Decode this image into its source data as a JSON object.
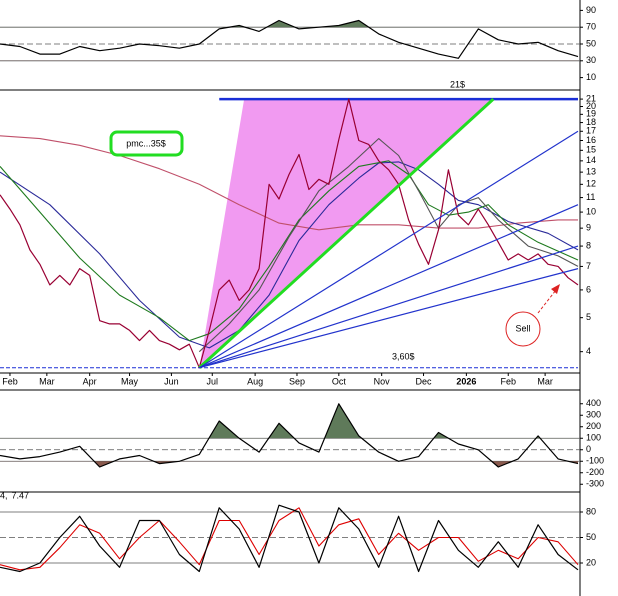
{
  "chart_data": [
    {
      "type": "line",
      "xlim": [
        0,
        58
      ],
      "ylim": [
        0,
        100
      ],
      "yticks": [
        90,
        70,
        50,
        30,
        10
      ],
      "ref_lines": [
        {
          "value": 70,
          "dashed": false
        },
        {
          "value": 50,
          "dashed": true
        },
        {
          "value": 30,
          "dashed": false
        }
      ],
      "fill_above": {
        "value": 70,
        "color": "#5f7a5a"
      },
      "fill_below": {
        "value": 30,
        "color": "#8a5a4e"
      },
      "x": [
        0,
        2,
        4,
        6,
        8,
        10,
        12,
        14,
        16,
        18,
        20,
        22,
        24,
        26,
        28,
        30,
        32,
        34,
        36,
        38,
        40,
        42,
        44,
        46,
        48,
        50,
        52,
        54,
        56,
        58
      ],
      "series": [
        {
          "color": "#000000",
          "values": [
            50,
            47,
            38,
            38,
            47,
            42,
            45,
            50,
            48,
            45,
            50,
            68,
            72,
            65,
            78,
            68,
            70,
            72,
            78,
            62,
            52,
            45,
            38,
            33,
            68,
            55,
            50,
            52,
            42,
            35
          ]
        }
      ]
    },
    {
      "type": "line",
      "yscale": "log",
      "xlim": [
        0,
        58
      ],
      "ylim": [
        3.5,
        22
      ],
      "yticks": [
        4,
        5,
        6,
        7,
        8,
        9,
        10,
        11,
        12,
        13,
        14,
        15,
        16,
        17,
        18,
        19,
        20,
        21
      ],
      "xticks": [
        {
          "value": 1,
          "label": "Feb"
        },
        {
          "value": 4.7,
          "label": "Mar"
        },
        {
          "value": 9,
          "label": "Apr"
        },
        {
          "value": 13,
          "label": "May"
        },
        {
          "value": 17.2,
          "label": "Jun"
        },
        {
          "value": 21.3,
          "label": "Jul"
        },
        {
          "value": 25.6,
          "label": "Aug"
        },
        {
          "value": 29.8,
          "label": "Sep"
        },
        {
          "value": 34,
          "label": "Oct"
        },
        {
          "value": 38.3,
          "label": "Nov"
        },
        {
          "value": 42.5,
          "label": "Dec"
        },
        {
          "value": 46.8,
          "label": "2026"
        },
        {
          "value": 51,
          "label": "Feb"
        },
        {
          "value": 54.7,
          "label": "Mar"
        }
      ],
      "zone": {
        "color": "#ee88ee",
        "x": [
          20,
          24.5,
          49.5
        ],
        "y": [
          3.6,
          21,
          21
        ]
      },
      "hlines": [
        {
          "value": 21,
          "x": [
            22,
            58
          ],
          "color": "#1a2ed6",
          "dashed": false
        },
        {
          "value": 3.6,
          "x": [
            0,
            58
          ],
          "color": "#1a2ed6",
          "dashed": true
        }
      ],
      "trendlines": [
        {
          "color": "#22dd22",
          "x": [
            20,
            49.5
          ],
          "y": [
            3.6,
            21
          ]
        },
        {
          "color": "#2233cc",
          "x": [
            20,
            58
          ],
          "y": [
            3.6,
            17
          ]
        },
        {
          "color": "#2233cc",
          "x": [
            20,
            58
          ],
          "y": [
            3.6,
            10.5
          ]
        },
        {
          "color": "#2233cc",
          "x": [
            20,
            58
          ],
          "y": [
            3.6,
            8
          ]
        },
        {
          "color": "#2233cc",
          "x": [
            20,
            58
          ],
          "y": [
            3.6,
            6.9
          ]
        }
      ],
      "series": [
        {
          "color": "#c0506a",
          "x": [
            0,
            4,
            8,
            12,
            16,
            20,
            24,
            28,
            32,
            36,
            40,
            44,
            48,
            52,
            56,
            58
          ],
          "values": [
            16.5,
            16.2,
            15.5,
            14.5,
            13.3,
            12,
            10.5,
            9.3,
            8.9,
            9.2,
            9.2,
            9,
            9,
            9.3,
            9.5,
            9.5
          ]
        },
        {
          "color": "#2a2a99",
          "x": [
            0,
            5,
            10,
            14,
            18,
            21,
            24,
            27,
            30,
            33,
            36,
            38,
            40,
            42,
            44,
            46,
            48,
            51,
            55,
            58
          ],
          "values": [
            13,
            10.5,
            7.6,
            5.6,
            4.4,
            4.1,
            4.6,
            5.8,
            8.3,
            10.5,
            12.5,
            13.8,
            13.9,
            13.2,
            12,
            10.8,
            10.5,
            9.4,
            8.7,
            7.8
          ]
        },
        {
          "color": "#1e7a1e",
          "x": [
            0,
            4,
            8,
            12,
            16,
            19,
            21,
            24,
            27,
            30,
            33,
            36,
            39,
            41,
            43,
            45,
            47,
            49,
            51,
            54,
            58
          ],
          "values": [
            13.5,
            10,
            7.4,
            5.8,
            5,
            4.3,
            4.5,
            5.3,
            7,
            9.5,
            11.5,
            13.5,
            14,
            12.8,
            10.5,
            9.8,
            10,
            10.5,
            9.2,
            8.2,
            7.3
          ]
        },
        {
          "color": "#555555",
          "x": [
            20,
            23,
            26,
            29,
            32,
            35,
            38,
            40,
            42,
            44,
            46,
            48,
            50,
            53,
            56,
            58
          ],
          "values": [
            4,
            4.8,
            6,
            8.5,
            11.5,
            13.5,
            16.2,
            14.5,
            11.5,
            9,
            10.5,
            11,
            9.5,
            8,
            7.5,
            7
          ]
        },
        {
          "color": "#990033",
          "x": [
            0,
            1,
            2,
            3,
            4,
            5,
            6,
            7,
            8,
            9,
            10,
            11,
            12,
            13,
            14,
            15,
            16,
            17,
            18,
            19,
            20,
            21,
            22,
            23,
            24,
            25,
            26,
            27,
            28,
            29,
            30,
            31,
            32,
            33,
            34,
            35,
            36,
            37,
            38,
            39,
            40,
            41,
            42,
            43,
            44,
            45,
            46,
            47,
            48,
            49,
            50,
            51,
            52,
            53,
            54,
            55,
            56,
            57,
            58
          ],
          "values": [
            11.2,
            10.2,
            9.2,
            7.8,
            7.1,
            6.2,
            6.6,
            6.2,
            6.9,
            6.6,
            4.9,
            4.8,
            4.8,
            4.6,
            4.3,
            4.6,
            4.3,
            4.2,
            4.05,
            4.2,
            3.6,
            4.6,
            6,
            6.4,
            5.6,
            6,
            6.9,
            12,
            10.9,
            12.8,
            14.6,
            11.6,
            12.4,
            12,
            16.1,
            21,
            16,
            15.6,
            14,
            13.2,
            12,
            9.5,
            8.1,
            7.1,
            8.9,
            13.2,
            9.8,
            9.2,
            10.2,
            9.2,
            8.2,
            7.3,
            7.6,
            7.3,
            7.6,
            7.1,
            7,
            6.5,
            6.2
          ]
        }
      ],
      "annotations": [
        "21$",
        "pmc...35$",
        "3,60$",
        "Sell"
      ]
    },
    {
      "type": "line",
      "xlim": [
        0,
        58
      ],
      "ylim": [
        -350,
        450
      ],
      "yticks": [
        400,
        300,
        200,
        100,
        0,
        -100,
        -200,
        -300
      ],
      "ref_lines": [
        {
          "value": 100,
          "dashed": false
        },
        {
          "value": 0,
          "dashed": true
        },
        {
          "value": -100,
          "dashed": false
        }
      ],
      "fill_above": {
        "value": 100,
        "color": "#5f7a5a"
      },
      "fill_below": {
        "value": -100,
        "color": "#8a5a4e"
      },
      "x": [
        0,
        2,
        4,
        6,
        8,
        10,
        12,
        14,
        16,
        18,
        20,
        22,
        24,
        26,
        28,
        30,
        32,
        34,
        36,
        38,
        40,
        42,
        44,
        46,
        48,
        50,
        52,
        54,
        56,
        58
      ],
      "series": [
        {
          "color": "#000000",
          "values": [
            -50,
            -80,
            -60,
            -20,
            30,
            -150,
            -80,
            -50,
            -120,
            -100,
            -40,
            250,
            100,
            -20,
            230,
            60,
            -20,
            400,
            120,
            -20,
            -100,
            -60,
            150,
            50,
            0,
            -150,
            -80,
            120,
            -80,
            -120
          ]
        }
      ]
    },
    {
      "type": "line",
      "xlim": [
        0,
        58
      ],
      "ylim": [
        0,
        100
      ],
      "yticks": [
        80,
        50,
        20
      ],
      "ref_lines": [
        {
          "value": 80,
          "dashed": false
        },
        {
          "value": 50,
          "dashed": true
        },
        {
          "value": 20,
          "dashed": false
        }
      ],
      "labels": [
        {
          "text": "4,",
          "color": "#000000"
        },
        {
          "text": "7.47",
          "color": "#cc0000"
        }
      ],
      "x": [
        0,
        2,
        4,
        6,
        8,
        10,
        12,
        14,
        16,
        18,
        20,
        22,
        24,
        26,
        28,
        30,
        32,
        34,
        36,
        38,
        40,
        42,
        44,
        46,
        48,
        50,
        52,
        54,
        56,
        58
      ],
      "series": [
        {
          "color": "#dd0000",
          "values": [
            18,
            12,
            15,
            38,
            65,
            55,
            25,
            50,
            70,
            45,
            18,
            70,
            70,
            30,
            70,
            85,
            40,
            65,
            72,
            30,
            55,
            35,
            50,
            50,
            22,
            35,
            25,
            50,
            45,
            18
          ]
        },
        {
          "color": "#000000",
          "values": [
            15,
            10,
            20,
            50,
            75,
            40,
            15,
            70,
            70,
            30,
            10,
            85,
            60,
            15,
            88,
            80,
            20,
            85,
            60,
            15,
            75,
            10,
            70,
            35,
            15,
            45,
            15,
            65,
            30,
            12
          ]
        }
      ]
    }
  ]
}
